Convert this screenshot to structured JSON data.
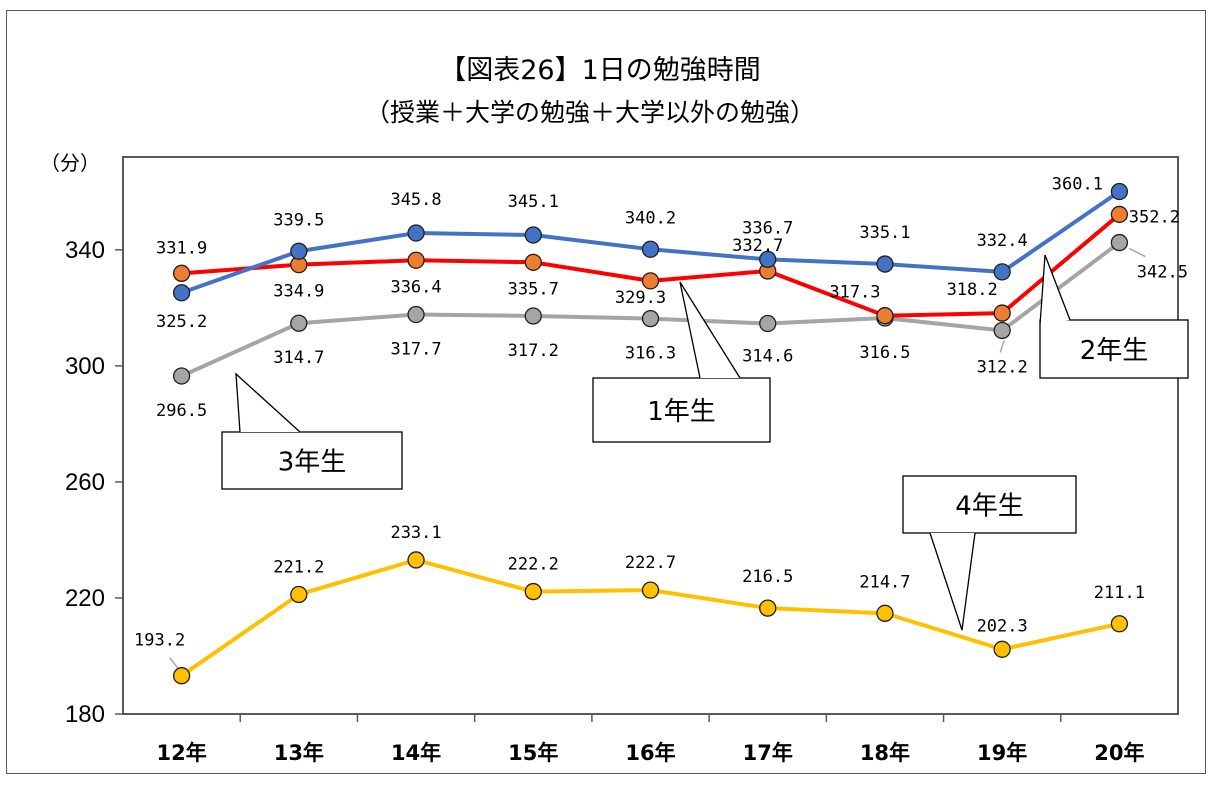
{
  "chart_data": {
    "type": "line",
    "title": "【図表26】1日の勉強時間",
    "subtitle": "（授業＋大学の勉強＋大学以外の勉強）",
    "ylabel": "（分）",
    "ylim": [
      180,
      372
    ],
    "yticks": [
      180,
      220,
      260,
      300,
      340
    ],
    "categories": [
      "12年",
      "13年",
      "14年",
      "15年",
      "16年",
      "17年",
      "18年",
      "19年",
      "20年"
    ],
    "grid": false,
    "legend": "callouts",
    "series": [
      {
        "name": "1年生",
        "color": "#ff0000",
        "marker": "#ed7d31",
        "values": [
          331.9,
          334.9,
          336.4,
          335.7,
          329.3,
          332.7,
          317.3,
          318.2,
          352.2
        ],
        "labels": [
          "331.9",
          "334.9",
          "336.4",
          "335.7",
          "329.3",
          "332.7",
          "317.3",
          "318.2",
          "352.2"
        ]
      },
      {
        "name": "2年生",
        "color": "#4472c4",
        "marker": "#4472c4",
        "values": [
          325.2,
          339.5,
          345.8,
          345.1,
          340.2,
          336.7,
          335.1,
          332.4,
          360.1
        ],
        "labels": [
          "325.2",
          "339.5",
          "345.8",
          "345.1",
          "340.2",
          "336.7",
          "335.1",
          "332.4",
          "360.1"
        ]
      },
      {
        "name": "3年生",
        "color": "#a5a5a5",
        "marker": "#a5a5a5",
        "values": [
          296.5,
          314.7,
          317.7,
          317.2,
          316.3,
          314.6,
          316.5,
          312.2,
          342.5
        ],
        "labels": [
          "296.5",
          "314.7",
          "317.7",
          "317.2",
          "316.3",
          "314.6",
          "316.5",
          "312.2",
          "342.5"
        ]
      },
      {
        "name": "4年生",
        "color": "#ffc000",
        "marker": "#ffc000",
        "values": [
          193.2,
          221.2,
          233.1,
          222.2,
          222.7,
          216.5,
          214.7,
          202.3,
          211.1
        ],
        "labels": [
          "193.2",
          "221.2",
          "233.1",
          "222.2",
          "222.7",
          "216.5",
          "214.7",
          "202.3",
          "211.1"
        ]
      }
    ]
  }
}
